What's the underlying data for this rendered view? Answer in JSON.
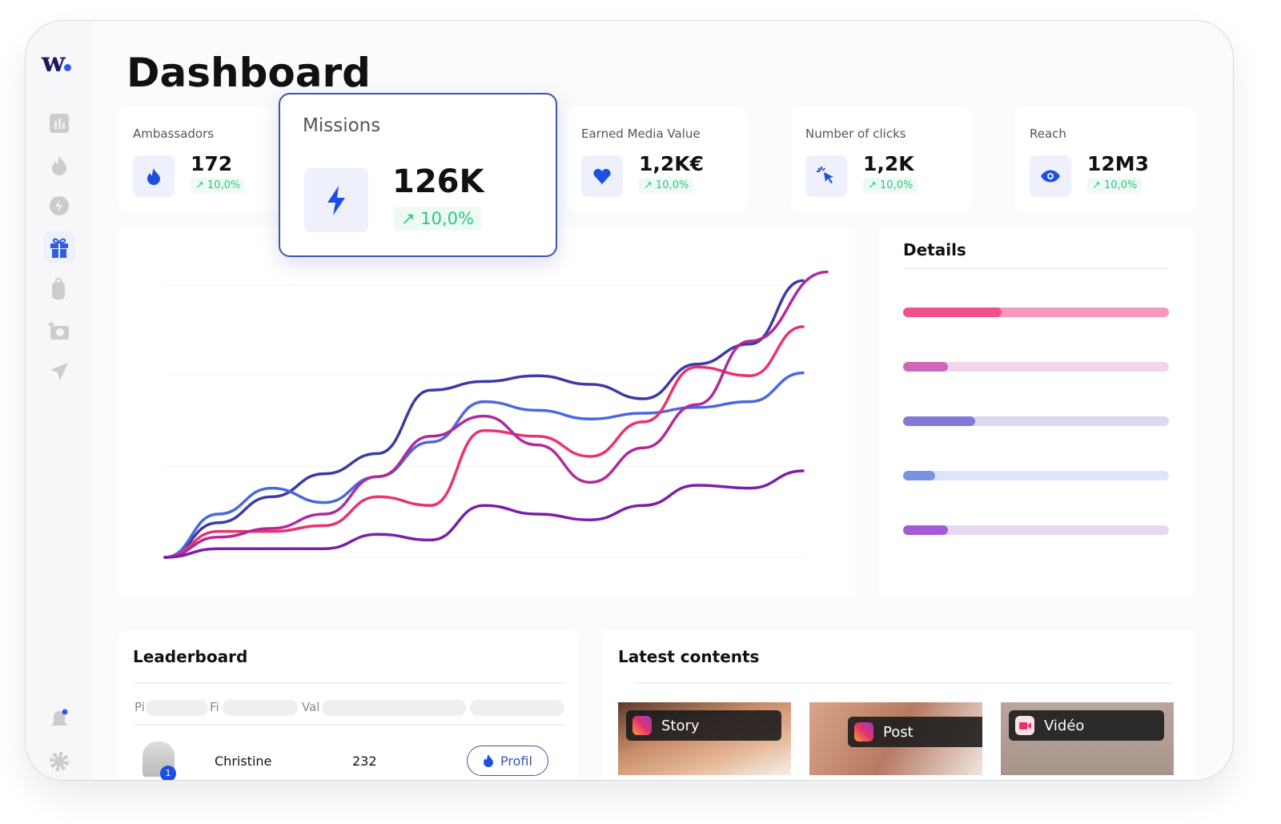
{
  "app": {
    "logo": "w",
    "title": "Dashboard"
  },
  "sidebar": {
    "items": [
      {
        "icon": "bar-chart-icon",
        "active": false
      },
      {
        "icon": "flame-icon",
        "active": false
      },
      {
        "icon": "lightning-icon",
        "active": false
      },
      {
        "icon": "gift-icon",
        "active": true
      },
      {
        "icon": "backpack-icon",
        "active": false
      },
      {
        "icon": "camera-plus-icon",
        "active": false
      },
      {
        "icon": "send-icon",
        "active": false
      }
    ],
    "bottom": [
      {
        "icon": "bell-icon",
        "has_notification": true
      },
      {
        "icon": "gear-icon"
      }
    ]
  },
  "kpis": [
    {
      "label": "Ambassadors",
      "value": "172",
      "trend": "10,0%",
      "icon": "flame-icon"
    },
    {
      "label": "Missions",
      "value": "126K",
      "trend": "10,0%",
      "icon": "lightning-icon",
      "highlighted": true
    },
    {
      "label": "Earned Media Value",
      "value": "1,2K€",
      "trend": "10,0%",
      "icon": "heart-icon"
    },
    {
      "label": "Number of clicks",
      "value": "1,2K",
      "trend": "10,0%",
      "icon": "cursor-click-icon"
    },
    {
      "label": "Reach",
      "value": "12M3",
      "trend": "10,0%",
      "icon": "eye-icon"
    }
  ],
  "chart_data": {
    "type": "line",
    "grid": true,
    "x": [
      1,
      2,
      3,
      4,
      5,
      6,
      7,
      8,
      9,
      10,
      11,
      12,
      13
    ],
    "series": [
      {
        "color": "#3b3aa6",
        "values": [
          0,
          12,
          21,
          29,
          36,
          58,
          61,
          63,
          60,
          55,
          67,
          74,
          96
        ]
      },
      {
        "color": "#4a68de",
        "values": [
          0,
          15,
          24,
          19,
          28,
          40,
          54,
          51,
          48,
          50,
          52,
          54,
          64
        ]
      },
      {
        "color": "#e8336f",
        "values": [
          0,
          9,
          9,
          11,
          21,
          18,
          44,
          42,
          35,
          47,
          66,
          63,
          80
        ]
      },
      {
        "color": "#b02a9c",
        "values": [
          0,
          7,
          10,
          15,
          28,
          42,
          49,
          39,
          26,
          38,
          53,
          75,
          99
        ]
      },
      {
        "color": "#7a1fa8",
        "values": [
          0,
          3,
          3,
          3,
          8,
          6,
          18,
          15,
          13,
          18,
          25,
          24,
          30
        ]
      }
    ]
  },
  "details": {
    "title": "Details",
    "bars": [
      {
        "percent": 37,
        "color": "#f0508c",
        "track": "#f898bd"
      },
      {
        "percent": 17,
        "color": "#d066b8",
        "track": "#f0d6ea"
      },
      {
        "percent": 27,
        "color": "#7f7ad6",
        "track": "#dcd8ee"
      },
      {
        "percent": 12,
        "color": "#7a92e6",
        "track": "#dde4fb"
      },
      {
        "percent": 17,
        "color": "#a55bd6",
        "track": "#e8d8f3"
      }
    ]
  },
  "leaderboard": {
    "title": "Leaderboard",
    "columns": [
      "Pi",
      "Fi",
      "Val"
    ],
    "rows": [
      {
        "rank": "1",
        "name": "Christine",
        "value": "232",
        "action": "Profil"
      }
    ]
  },
  "latest": {
    "title": "Latest contents",
    "items": [
      {
        "type": "Story",
        "icon": "instagram-icon"
      },
      {
        "type": "Post",
        "icon": "instagram-icon"
      },
      {
        "type": "Vidéo",
        "icon": "video-camera-icon"
      }
    ]
  }
}
